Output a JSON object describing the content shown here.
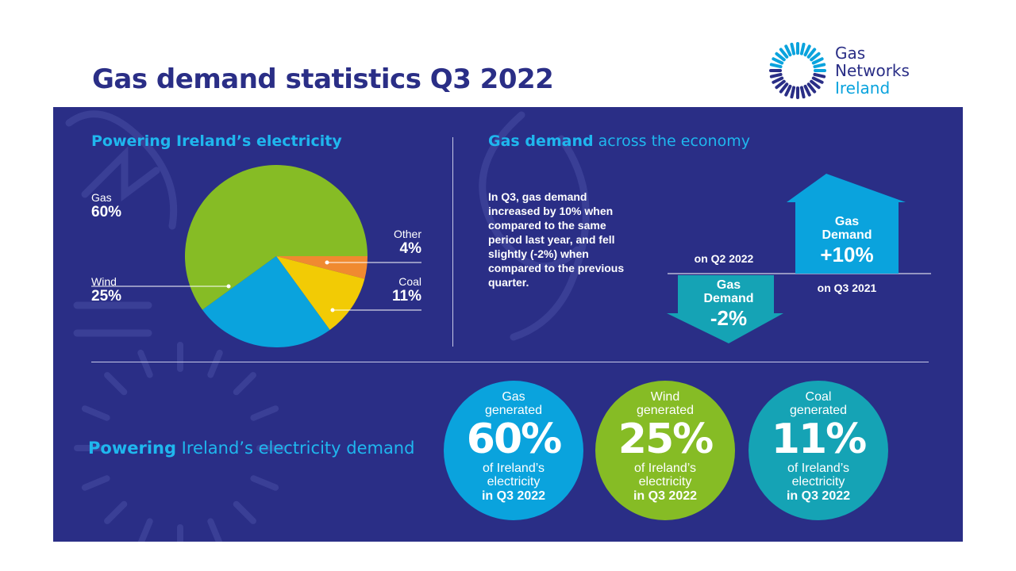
{
  "title": "Gas demand statistics Q3 2022",
  "logo": {
    "line1": "Gas",
    "line2": "Networks",
    "line3": "Ireland"
  },
  "colors": {
    "navy": "#2a2e86",
    "cyan": "#1fb7ee",
    "gas": "#86bc25",
    "wind": "#0aa3dd",
    "coal": "#f2cb05",
    "other": "#f08a30",
    "teal": "#15a3b5"
  },
  "pie_section": {
    "title": "Powering Ireland’s electricity",
    "labels": [
      {
        "name": "Gas",
        "value": "60%"
      },
      {
        "name": "Wind",
        "value": "25%"
      },
      {
        "name": "Other",
        "value": "4%"
      },
      {
        "name": "Coal",
        "value": "11%"
      }
    ]
  },
  "chart_data": {
    "type": "pie",
    "title": "Powering Ireland’s electricity",
    "slices": [
      {
        "label": "Gas",
        "value": 60,
        "color": "#86bc25"
      },
      {
        "label": "Wind",
        "value": 25,
        "color": "#0aa3dd"
      },
      {
        "label": "Coal",
        "value": 11,
        "color": "#f2cb05"
      },
      {
        "label": "Other",
        "value": 4,
        "color": "#f08a30"
      }
    ]
  },
  "demand_section": {
    "title_bold": "Gas demand",
    "title_rest": " across the economy",
    "description": "In Q3, gas demand increased by 10% when compared to the same period last year, and fell slightly (-2%) when compared to the previous quarter.",
    "up_arrow": {
      "line1": "Gas",
      "line2": "Demand",
      "value": "+10%",
      "caption": "on Q3 2021"
    },
    "down_arrow": {
      "line1": "Gas",
      "line2": "Demand",
      "value": "-2%",
      "caption": "on Q2 2022"
    }
  },
  "bottom_section": {
    "title_bold": "Powering",
    "title_rest": " Ireland’s electricity demand",
    "circles": [
      {
        "line1": "Gas",
        "line2": "generated",
        "value": "60%",
        "line3": "of Ireland’s",
        "line4": "electricity",
        "line5": "in Q3 2022"
      },
      {
        "line1": "Wind",
        "line2": "generated",
        "value": "25%",
        "line3": "of Ireland’s",
        "line4": "electricity",
        "line5": "in Q3 2022"
      },
      {
        "line1": "Coal",
        "line2": "generated",
        "value": "11%",
        "line3": "of Ireland’s",
        "line4": "electricity",
        "line5": "in Q3 2022"
      }
    ]
  }
}
